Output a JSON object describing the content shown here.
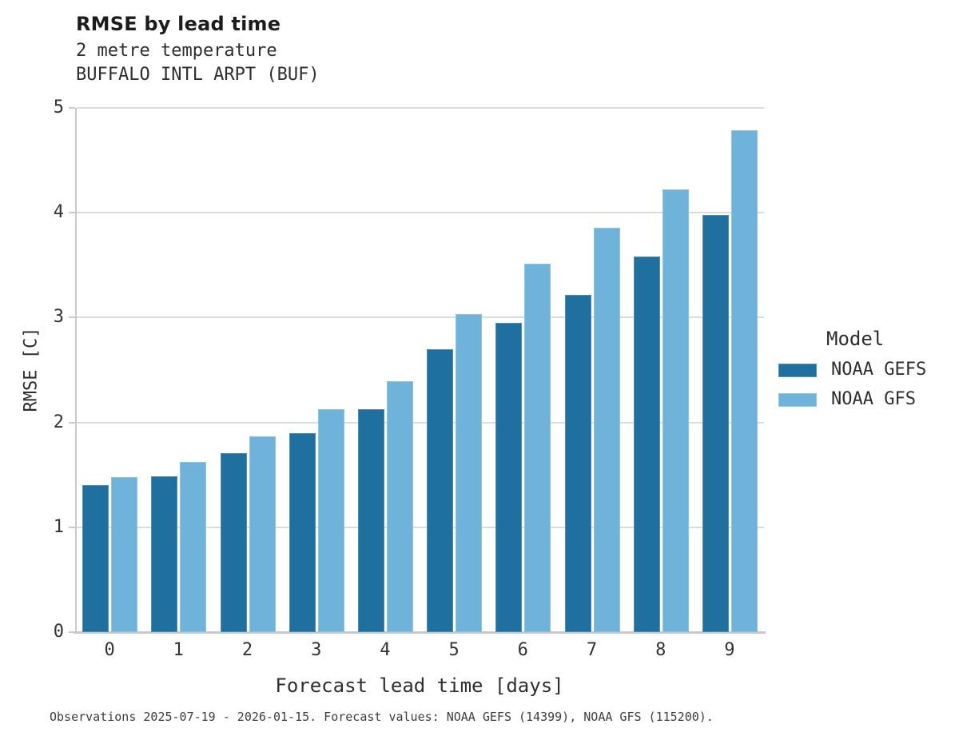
{
  "header": {
    "title": "RMSE by lead time",
    "subtitle1": "2 metre temperature",
    "subtitle2": "BUFFALO INTL ARPT (BUF)"
  },
  "legend": {
    "title": "Model",
    "entries": [
      {
        "label": "NOAA GEFS",
        "color": "#1f6f9f"
      },
      {
        "label": "NOAA GFS",
        "color": "#6fb3da"
      }
    ]
  },
  "footer": {
    "note": "Observations 2025-07-19 - 2026-01-15. Forecast values: NOAA GEFS (14399), NOAA GFS (115200)."
  },
  "chart_data": {
    "type": "bar",
    "title": "RMSE by lead time",
    "subtitle": "2 metre temperature — BUFFALO INTL ARPT (BUF)",
    "categories": [
      "0",
      "1",
      "2",
      "3",
      "4",
      "5",
      "6",
      "7",
      "8",
      "9"
    ],
    "series": [
      {
        "name": "NOAA GEFS",
        "color": "#1f6f9f",
        "values": [
          1.4,
          1.49,
          1.71,
          1.9,
          2.13,
          2.7,
          2.95,
          3.22,
          3.58,
          3.98
        ]
      },
      {
        "name": "NOAA GFS",
        "color": "#6fb3da",
        "values": [
          1.48,
          1.62,
          1.87,
          2.13,
          2.39,
          3.03,
          3.51,
          3.86,
          4.22,
          4.79
        ]
      }
    ],
    "xlabel": "Forecast lead time [days]",
    "ylabel": "RMSE [C]",
    "ylim": [
      0,
      5
    ],
    "yticks": [
      0,
      1,
      2,
      3,
      4,
      5
    ],
    "grid": true,
    "legend_title": "Model",
    "legend_position": "right"
  },
  "colors": {
    "grid": "#dcdcdc",
    "spine": "#c9c9c9",
    "text": "#2e2e2e",
    "series_dark": "#1f6f9f",
    "series_light": "#6fb3da"
  }
}
